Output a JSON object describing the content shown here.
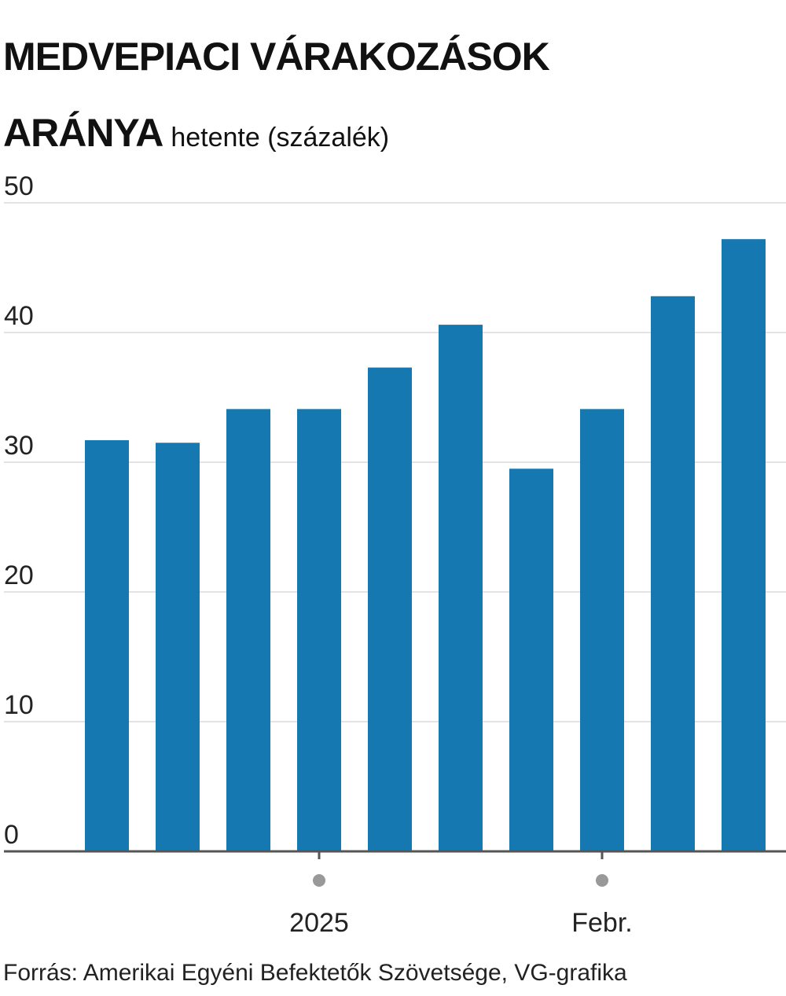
{
  "chart_data": {
    "type": "bar",
    "title": "MEDVEPIACI VÁRAKOZÁSOK ARÁNYA",
    "subtitle": "hetente (százalék)",
    "categories": [
      null,
      null,
      null,
      "2025",
      null,
      null,
      null,
      "Febr.",
      null,
      null
    ],
    "values": [
      31.7,
      31.5,
      34.1,
      34.1,
      37.3,
      40.6,
      29.5,
      34.1,
      42.8,
      47.2
    ],
    "color": "#1578b0",
    "ylim": [
      0,
      50
    ],
    "yticks": [
      0,
      10,
      20,
      30,
      40,
      50
    ],
    "grid": true,
    "source": "Forrás: Amerikai Egyéni Befektetők Szövetsége, VG-grafika"
  }
}
